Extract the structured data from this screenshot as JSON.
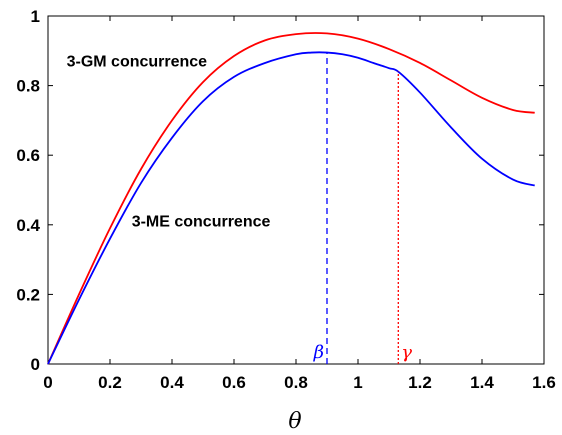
{
  "chart_data": {
    "type": "line",
    "title": "",
    "xlabel": "θ",
    "ylabel": "",
    "xlim": [
      0,
      1.6
    ],
    "ylim": [
      0,
      1
    ],
    "xticks": [
      "0",
      "0.2",
      "0.4",
      "0.6",
      "0.8",
      "1",
      "1.2",
      "1.4",
      "1.6"
    ],
    "yticks": [
      "0",
      "0.2",
      "0.4",
      "0.6",
      "0.8",
      "1"
    ],
    "grid": false,
    "series": [
      {
        "name": "3-GM concurrence",
        "color": "#ff0000",
        "x": [
          0,
          0.1,
          0.2,
          0.3,
          0.4,
          0.5,
          0.6,
          0.7,
          0.8,
          0.9,
          1.0,
          1.1,
          1.2,
          1.3,
          1.4,
          1.5,
          1.57
        ],
        "y": [
          0,
          0.2,
          0.39,
          0.56,
          0.7,
          0.81,
          0.885,
          0.93,
          0.948,
          0.95,
          0.935,
          0.905,
          0.865,
          0.815,
          0.765,
          0.73,
          0.722
        ]
      },
      {
        "name": "3-ME concurrence",
        "color": "#0000ff",
        "x": [
          0,
          0.1,
          0.2,
          0.3,
          0.4,
          0.5,
          0.6,
          0.7,
          0.8,
          0.85,
          0.9,
          0.95,
          1.0,
          1.05,
          1.1,
          1.13,
          1.2,
          1.3,
          1.4,
          1.5,
          1.57
        ],
        "y": [
          0,
          0.185,
          0.36,
          0.52,
          0.65,
          0.755,
          0.825,
          0.865,
          0.89,
          0.895,
          0.895,
          0.89,
          0.88,
          0.865,
          0.85,
          0.84,
          0.78,
          0.68,
          0.59,
          0.53,
          0.513
        ]
      }
    ],
    "markers": [
      {
        "label": "β",
        "x": 0.9,
        "y": 0.895,
        "color": "#0000ff",
        "style": "dashed"
      },
      {
        "label": "γ",
        "x": 1.13,
        "y": 0.84,
        "color": "#ff0000",
        "style": "dotted"
      }
    ],
    "annotations": [
      {
        "text": "3-GM concurrence",
        "x": 0.06,
        "y": 0.855
      },
      {
        "text": "3-ME concurrence",
        "x": 0.27,
        "y": 0.395
      }
    ]
  }
}
